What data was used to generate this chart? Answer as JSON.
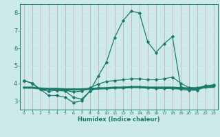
{
  "xlabel": "Humidex (Indice chaleur)",
  "x_values": [
    0,
    1,
    2,
    3,
    4,
    5,
    6,
    7,
    8,
    9,
    10,
    11,
    12,
    13,
    14,
    15,
    16,
    17,
    18,
    19,
    20,
    21,
    22,
    23
  ],
  "line_peak_y": [
    4.15,
    4.0,
    3.65,
    3.55,
    3.6,
    3.55,
    3.2,
    3.1,
    3.55,
    4.4,
    5.2,
    6.6,
    7.55,
    8.1,
    8.0,
    6.35,
    5.75,
    6.25,
    6.65,
    3.8,
    3.65,
    3.65,
    3.85,
    3.9
  ],
  "line_rising_y": [
    4.15,
    4.0,
    3.65,
    3.55,
    3.6,
    3.6,
    3.5,
    3.55,
    3.75,
    3.95,
    4.1,
    4.15,
    4.2,
    4.25,
    4.25,
    4.2,
    4.2,
    4.25,
    4.35,
    4.0,
    3.75,
    3.75,
    3.85,
    3.9
  ],
  "line_low_y": [
    4.15,
    4.0,
    3.65,
    3.3,
    3.3,
    3.2,
    2.9,
    3.0,
    3.55,
    3.75,
    3.7,
    3.75,
    3.75,
    3.8,
    3.8,
    3.75,
    3.7,
    3.7,
    3.7,
    3.65,
    3.6,
    3.6,
    3.8,
    3.85
  ],
  "line_median_y": [
    3.75,
    3.75,
    3.7,
    3.68,
    3.68,
    3.65,
    3.65,
    3.65,
    3.68,
    3.7,
    3.72,
    3.75,
    3.75,
    3.78,
    3.78,
    3.75,
    3.75,
    3.75,
    3.75,
    3.72,
    3.7,
    3.7,
    3.78,
    3.8
  ],
  "line_color": "#1a7a6a",
  "bg_color": "#cceaea",
  "grid_color_x": "#c8e0e0",
  "grid_color_y": "#d4aaaa",
  "ylim": [
    2.5,
    8.5
  ],
  "xlim": [
    -0.5,
    23.5
  ],
  "yticks": [
    3,
    4,
    5,
    6,
    7,
    8
  ]
}
